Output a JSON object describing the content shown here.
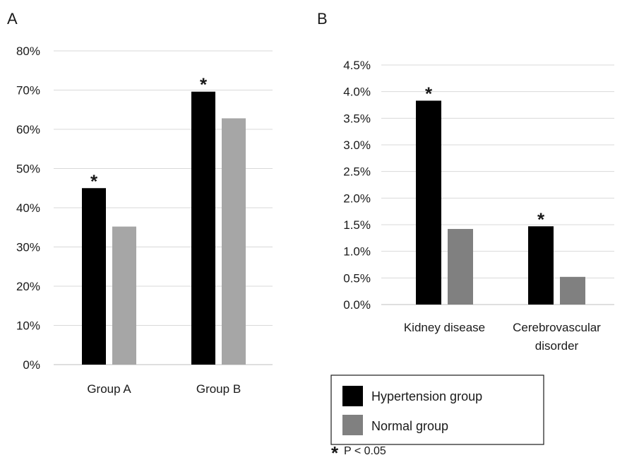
{
  "chart_data": [
    {
      "type": "bar",
      "panel_label": "A",
      "categories": [
        "Group A",
        "Group B"
      ],
      "series": [
        {
          "name": "Hypertension group",
          "values": [
            45,
            69.6
          ],
          "color": "#000000"
        },
        {
          "name": "Normal group",
          "values": [
            35.2,
            62.8
          ],
          "color": "#a6a6a6"
        }
      ],
      "significant": [
        true,
        true
      ],
      "ylim": [
        0,
        80
      ],
      "yticks": [
        0,
        10,
        20,
        30,
        40,
        50,
        60,
        70,
        80
      ],
      "ytick_labels": [
        "0%",
        "10%",
        "20%",
        "30%",
        "40%",
        "50%",
        "60%",
        "70%",
        "80%"
      ],
      "grid": true,
      "title": "",
      "xlabel": "",
      "ylabel": ""
    },
    {
      "type": "bar",
      "panel_label": "B",
      "categories": [
        "Kidney disease",
        "Cerebrovascular disorder"
      ],
      "category_lines": [
        [
          "Kidney disease"
        ],
        [
          "Cerebrovascular",
          "disorder"
        ]
      ],
      "series": [
        {
          "name": "Hypertension group",
          "values": [
            3.83,
            1.47
          ],
          "color": "#000000"
        },
        {
          "name": "Normal group",
          "values": [
            1.42,
            0.52
          ],
          "color": "#808080"
        }
      ],
      "significant": [
        true,
        true
      ],
      "ylim": [
        0,
        4.5
      ],
      "yticks": [
        0,
        0.5,
        1.0,
        1.5,
        2.0,
        2.5,
        3.0,
        3.5,
        4.0,
        4.5
      ],
      "ytick_labels": [
        "0.0%",
        "0.5%",
        "1.0%",
        "1.5%",
        "2.0%",
        "2.5%",
        "3.0%",
        "3.5%",
        "4.0%",
        "4.5%"
      ],
      "grid": true,
      "title": "",
      "xlabel": "",
      "ylabel": ""
    }
  ],
  "legend": {
    "items": [
      {
        "label": "Hypertension group",
        "color": "#000000"
      },
      {
        "label": "Normal group",
        "color": "#808080"
      }
    ]
  },
  "significance_note": {
    "symbol": "*",
    "text": "P < 0.05"
  }
}
